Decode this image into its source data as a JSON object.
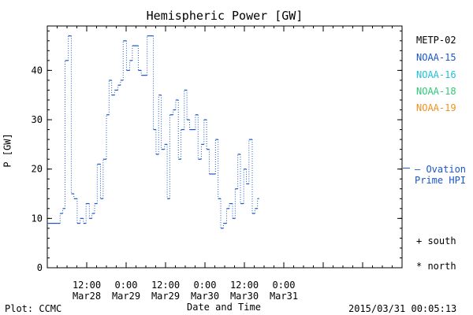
{
  "chart_data": {
    "type": "line",
    "title": "Hemispheric Power [GW]",
    "xlabel": "Date and Time",
    "ylabel": "P [GW]",
    "ylim": [
      0,
      49
    ],
    "yticks": [
      0,
      10,
      20,
      30,
      40
    ],
    "x_range_hours": [
      0,
      108
    ],
    "xticks": [
      {
        "hour": 12,
        "time": "12:00",
        "date": "Mar28"
      },
      {
        "hour": 24,
        "time": "0:00",
        "date": "Mar29"
      },
      {
        "hour": 36,
        "time": "12:00",
        "date": "Mar29"
      },
      {
        "hour": 48,
        "time": "0:00",
        "date": "Mar30"
      },
      {
        "hour": 60,
        "time": "12:00",
        "date": "Mar30"
      },
      {
        "hour": 72,
        "time": "0:00",
        "date": "Mar31"
      }
    ],
    "grid": false,
    "legend_position": "right",
    "legend": [
      "METP-02",
      "NOAA-15",
      "NOAA-16",
      "NOAA-18",
      "NOAA-19"
    ],
    "legend_colors": [
      "#000000",
      "#1a56c8",
      "#20c0d8",
      "#30c878",
      "#f09020"
    ],
    "series": [
      {
        "name": "NOAA-15",
        "color": "#1a56c8",
        "line_style": "dotted-steps",
        "points": [
          [
            0,
            9
          ],
          [
            2.9,
            9
          ],
          [
            3.9,
            11
          ],
          [
            4.7,
            12
          ],
          [
            5.4,
            42
          ],
          [
            6.4,
            47
          ],
          [
            7.3,
            15
          ],
          [
            8.1,
            14
          ],
          [
            9.1,
            9
          ],
          [
            10.0,
            10
          ],
          [
            11.0,
            9
          ],
          [
            11.8,
            13
          ],
          [
            12.8,
            10
          ],
          [
            13.6,
            11
          ],
          [
            14.4,
            13
          ],
          [
            15.2,
            21
          ],
          [
            16.2,
            14
          ],
          [
            17.0,
            22
          ],
          [
            18.0,
            31
          ],
          [
            18.8,
            38
          ],
          [
            19.6,
            35
          ],
          [
            20.5,
            36
          ],
          [
            21.5,
            37
          ],
          [
            22.3,
            38
          ],
          [
            23.1,
            46
          ],
          [
            24.1,
            40
          ],
          [
            25.1,
            42
          ],
          [
            25.9,
            45
          ],
          [
            27.7,
            40
          ],
          [
            28.6,
            39
          ],
          [
            30.4,
            47
          ],
          [
            32.3,
            28
          ],
          [
            33.1,
            23
          ],
          [
            33.9,
            35
          ],
          [
            34.7,
            24
          ],
          [
            35.7,
            25
          ],
          [
            36.5,
            14
          ],
          [
            37.3,
            31
          ],
          [
            38.3,
            32
          ],
          [
            39.1,
            34
          ],
          [
            39.9,
            22
          ],
          [
            40.7,
            28
          ],
          [
            41.7,
            36
          ],
          [
            42.5,
            30
          ],
          [
            43.3,
            28
          ],
          [
            45.1,
            31
          ],
          [
            45.9,
            22
          ],
          [
            46.9,
            25
          ],
          [
            47.7,
            30
          ],
          [
            48.5,
            24
          ],
          [
            49.3,
            19
          ],
          [
            51.2,
            26
          ],
          [
            52.0,
            14
          ],
          [
            52.8,
            8
          ],
          [
            53.6,
            9
          ],
          [
            54.6,
            12
          ],
          [
            55.4,
            13
          ],
          [
            56.4,
            10
          ],
          [
            57.2,
            16
          ],
          [
            58.0,
            23
          ],
          [
            58.8,
            13
          ],
          [
            59.8,
            20
          ],
          [
            60.6,
            17
          ],
          [
            61.4,
            26
          ],
          [
            62.4,
            11
          ],
          [
            63.2,
            12
          ],
          [
            64.0,
            14
          ]
        ]
      }
    ],
    "annotations": [
      {
        "text": "— Ovation Prime HPI",
        "value": 20.2,
        "color": "#1a56c8"
      },
      {
        "text": "+ south"
      },
      {
        "text": "* north"
      }
    ]
  },
  "footer": {
    "left": "Plot: CCMC",
    "right": "2015/03/31 00:05:13"
  }
}
